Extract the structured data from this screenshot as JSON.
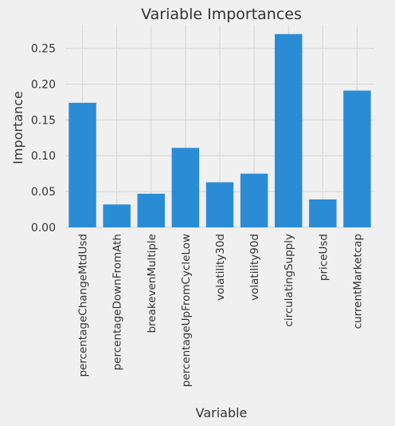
{
  "chart_data": {
    "type": "bar",
    "title": "Variable Importances",
    "xlabel": "Variable",
    "ylabel": "Importance",
    "categories": [
      "percentageChangeMtdUsd",
      "percentageDownFromAth",
      "breakevenMultiple",
      "percentageUpFromCycleLow",
      "volatility30d",
      "volatility90d",
      "circulatingSupply",
      "priceUsd",
      "currentMarketcap"
    ],
    "values": [
      0.174,
      0.032,
      0.047,
      0.111,
      0.063,
      0.075,
      0.27,
      0.039,
      0.191
    ],
    "y_ticks": [
      "0.00",
      "0.05",
      "0.10",
      "0.15",
      "0.20",
      "0.25"
    ],
    "ylim": [
      0,
      0.283
    ],
    "grid": true,
    "bar_color": "#2b8cd6",
    "background_color": "#f0f0f0",
    "grid_color": "#d9d9d9"
  }
}
